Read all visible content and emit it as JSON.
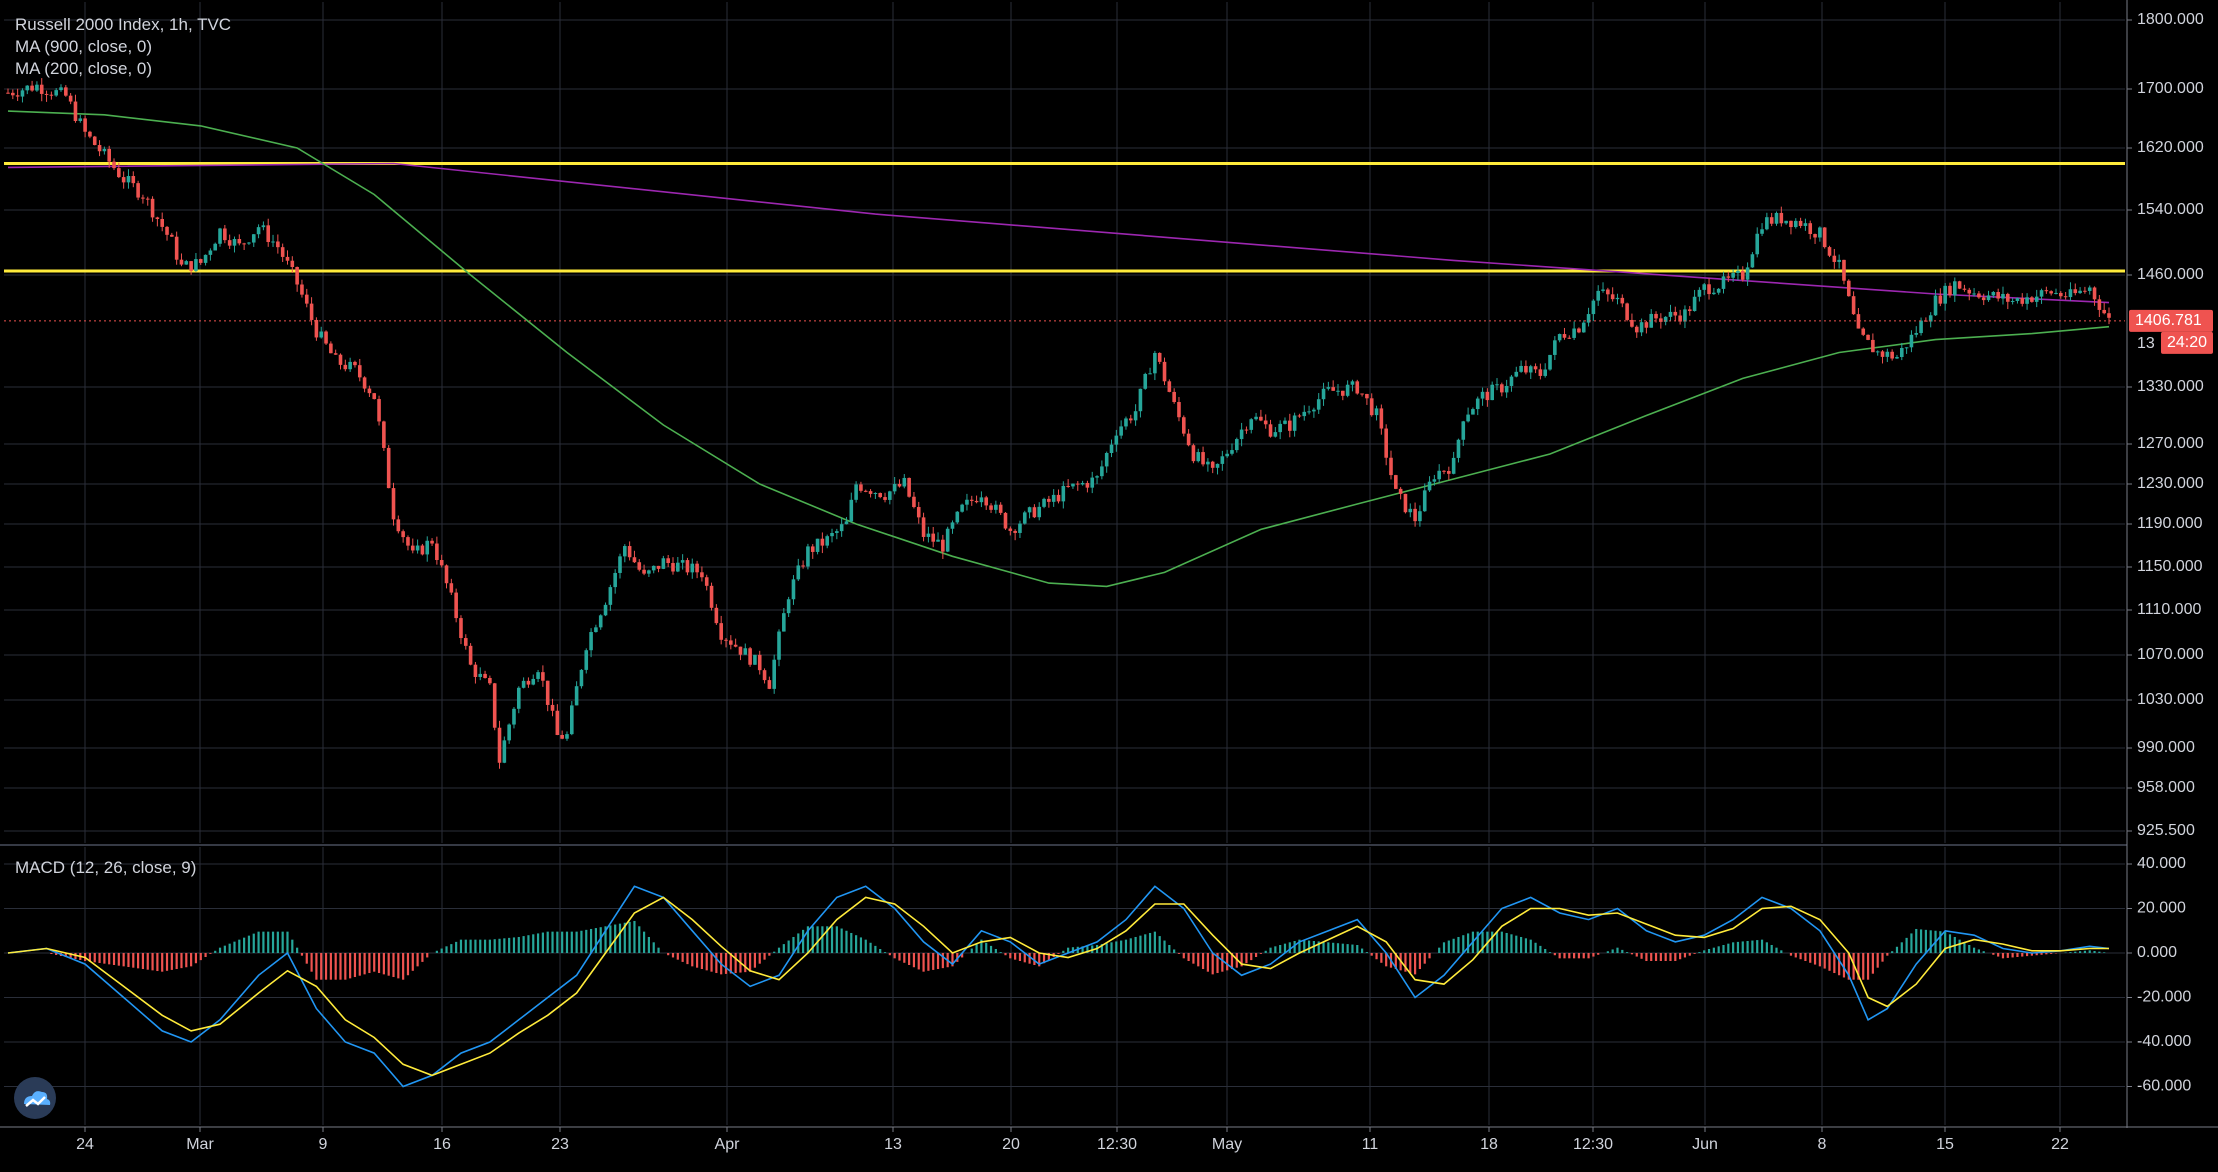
{
  "legend": {
    "title": "Russell 2000 Index, 1h, TVC",
    "ma900": "MA (900, close, 0)",
    "ma200": "MA (200, close, 0)",
    "macd": "MACD (12, 26, close, 9)"
  },
  "price_badge": "1406.781",
  "countdown_badge": "24:20",
  "hidden_label_fragment": "13",
  "logo": "tradingview-logo-icon",
  "colors": {
    "background": "#000000",
    "grid": "#2a2e39",
    "up": "#26a69a",
    "down": "#ef5350",
    "ma900": "#9c27b0",
    "ma200": "#4caf50",
    "resistance": "#ffeb3b",
    "macd_line": "#2196f3",
    "signal_line": "#ffeb3b",
    "hist_up": "#26a69a",
    "hist_down": "#ef5350",
    "axis_text": "#d1d4dc"
  },
  "chart_data": [
    {
      "type": "candlestick",
      "title": "Russell 2000 Index, 1h, TVC",
      "y_ticks": [
        "1800.000",
        "1700.000",
        "1620.000",
        "1540.000",
        "1460.000",
        "1330.000",
        "1270.000",
        "1230.000",
        "1190.000",
        "1150.000",
        "1110.000",
        "1070.000",
        "1030.000",
        "990.000",
        "958.000",
        "925.500"
      ],
      "x_ticks": [
        "24",
        "Mar",
        "9",
        "16",
        "23",
        "Apr",
        "13",
        "20",
        "12:30",
        "May",
        "11",
        "18",
        "12:30",
        "Jun",
        "8",
        "15",
        "22"
      ],
      "resistance_levels": [
        1600,
        1465
      ],
      "last_price": 1406.781,
      "close_path": [
        [
          0,
          1695
        ],
        [
          3,
          1705
        ],
        [
          6,
          1690
        ],
        [
          8,
          1640
        ],
        [
          10,
          1610
        ],
        [
          12,
          1580
        ],
        [
          14,
          1560
        ],
        [
          17,
          1500
        ],
        [
          18,
          1470
        ],
        [
          20,
          1475
        ],
        [
          22,
          1515
        ],
        [
          24,
          1495
        ],
        [
          26,
          1520
        ],
        [
          28,
          1495
        ],
        [
          30,
          1450
        ],
        [
          32,
          1395
        ],
        [
          34,
          1360
        ],
        [
          36,
          1350
        ],
        [
          38,
          1320
        ],
        [
          40,
          1200
        ],
        [
          42,
          1160
        ],
        [
          44,
          1175
        ],
        [
          46,
          1120
        ],
        [
          48,
          1060
        ],
        [
          50,
          1040
        ],
        [
          51,
          980
        ],
        [
          53,
          1040
        ],
        [
          55,
          1060
        ],
        [
          57,
          1000
        ],
        [
          58,
          1000
        ],
        [
          60,
          1080
        ],
        [
          62,
          1120
        ],
        [
          64,
          1170
        ],
        [
          66,
          1140
        ],
        [
          68,
          1155
        ],
        [
          70,
          1150
        ],
        [
          72,
          1145
        ],
        [
          74,
          1090
        ],
        [
          76,
          1075
        ],
        [
          78,
          1060
        ],
        [
          79,
          1045
        ],
        [
          81,
          1125
        ],
        [
          83,
          1165
        ],
        [
          85,
          1175
        ],
        [
          87,
          1190
        ],
        [
          88,
          1230
        ],
        [
          91,
          1220
        ],
        [
          93,
          1230
        ],
        [
          95,
          1180
        ],
        [
          97,
          1170
        ],
        [
          99,
          1205
        ],
        [
          101,
          1222
        ],
        [
          104,
          1185
        ],
        [
          106,
          1200
        ],
        [
          108,
          1212
        ],
        [
          110,
          1225
        ],
        [
          113,
          1235
        ],
        [
          115,
          1285
        ],
        [
          117,
          1305
        ],
        [
          119,
          1370
        ],
        [
          121,
          1310
        ],
        [
          123,
          1260
        ],
        [
          125,
          1240
        ],
        [
          127,
          1270
        ],
        [
          129,
          1300
        ],
        [
          131,
          1285
        ],
        [
          133,
          1290
        ],
        [
          135,
          1310
        ],
        [
          137,
          1325
        ],
        [
          140,
          1330
        ],
        [
          142,
          1300
        ],
        [
          144,
          1220
        ],
        [
          146,
          1195
        ],
        [
          148,
          1240
        ],
        [
          150,
          1250
        ],
        [
          151,
          1300
        ],
        [
          153,
          1320
        ],
        [
          155,
          1330
        ],
        [
          157,
          1350
        ],
        [
          159,
          1345
        ],
        [
          161,
          1390
        ],
        [
          163,
          1400
        ],
        [
          165,
          1440
        ],
        [
          167,
          1430
        ],
        [
          169,
          1400
        ],
        [
          171,
          1410
        ],
        [
          174,
          1415
        ],
        [
          176,
          1445
        ],
        [
          178,
          1450
        ],
        [
          180,
          1460
        ],
        [
          182,
          1525
        ],
        [
          184,
          1530
        ],
        [
          186,
          1525
        ],
        [
          188,
          1510
        ],
        [
          190,
          1470
        ],
        [
          192,
          1390
        ],
        [
          194,
          1370
        ],
        [
          196,
          1365
        ],
        [
          198,
          1395
        ],
        [
          200,
          1430
        ],
        [
          202,
          1450
        ],
        [
          204,
          1440
        ],
        [
          206,
          1435
        ],
        [
          208,
          1430
        ],
        [
          210,
          1435
        ],
        [
          212,
          1440
        ],
        [
          214,
          1435
        ],
        [
          216,
          1445
        ],
        [
          218,
          1407
        ]
      ],
      "ma900_path": [
        [
          0,
          1595
        ],
        [
          40,
          1600
        ],
        [
          90,
          1535
        ],
        [
          150,
          1478
        ],
        [
          200,
          1438
        ],
        [
          218,
          1428
        ]
      ],
      "ma200_path": [
        [
          0,
          1670
        ],
        [
          10,
          1665
        ],
        [
          20,
          1650
        ],
        [
          30,
          1620
        ],
        [
          38,
          1560
        ],
        [
          48,
          1460
        ],
        [
          58,
          1370
        ],
        [
          68,
          1290
        ],
        [
          78,
          1230
        ],
        [
          88,
          1190
        ],
        [
          98,
          1160
        ],
        [
          108,
          1135
        ],
        [
          114,
          1132
        ],
        [
          120,
          1145
        ],
        [
          130,
          1185
        ],
        [
          140,
          1210
        ],
        [
          150,
          1235
        ],
        [
          160,
          1260
        ],
        [
          170,
          1300
        ],
        [
          180,
          1340
        ],
        [
          190,
          1370
        ],
        [
          200,
          1385
        ],
        [
          210,
          1392
        ],
        [
          218,
          1400
        ]
      ]
    },
    {
      "type": "macd",
      "title": "MACD (12, 26, close, 9)",
      "y_ticks": [
        "40.000",
        "20.000",
        "0.000",
        "-20.000",
        "-40.000",
        "-60.000"
      ],
      "ylim": [
        -80,
        40
      ],
      "macd_path": [
        [
          0,
          0
        ],
        [
          4,
          2
        ],
        [
          8,
          -5
        ],
        [
          12,
          -20
        ],
        [
          16,
          -35
        ],
        [
          19,
          -40
        ],
        [
          22,
          -30
        ],
        [
          26,
          -10
        ],
        [
          29,
          0
        ],
        [
          32,
          -25
        ],
        [
          35,
          -40
        ],
        [
          38,
          -45
        ],
        [
          41,
          -60
        ],
        [
          44,
          -55
        ],
        [
          47,
          -45
        ],
        [
          50,
          -40
        ],
        [
          53,
          -30
        ],
        [
          56,
          -20
        ],
        [
          59,
          -10
        ],
        [
          62,
          10
        ],
        [
          65,
          30
        ],
        [
          68,
          25
        ],
        [
          71,
          10
        ],
        [
          74,
          -5
        ],
        [
          77,
          -15
        ],
        [
          80,
          -10
        ],
        [
          83,
          10
        ],
        [
          86,
          25
        ],
        [
          89,
          30
        ],
        [
          92,
          20
        ],
        [
          95,
          5
        ],
        [
          98,
          -5
        ],
        [
          101,
          10
        ],
        [
          104,
          5
        ],
        [
          107,
          -5
        ],
        [
          110,
          0
        ],
        [
          113,
          5
        ],
        [
          116,
          15
        ],
        [
          119,
          30
        ],
        [
          122,
          20
        ],
        [
          125,
          0
        ],
        [
          128,
          -10
        ],
        [
          131,
          -5
        ],
        [
          134,
          5
        ],
        [
          137,
          10
        ],
        [
          140,
          15
        ],
        [
          143,
          0
        ],
        [
          146,
          -20
        ],
        [
          149,
          -10
        ],
        [
          152,
          5
        ],
        [
          155,
          20
        ],
        [
          158,
          25
        ],
        [
          161,
          18
        ],
        [
          164,
          15
        ],
        [
          167,
          20
        ],
        [
          170,
          10
        ],
        [
          173,
          5
        ],
        [
          176,
          8
        ],
        [
          179,
          15
        ],
        [
          182,
          25
        ],
        [
          185,
          20
        ],
        [
          188,
          10
        ],
        [
          191,
          -10
        ],
        [
          193,
          -30
        ],
        [
          195,
          -25
        ],
        [
          198,
          -5
        ],
        [
          201,
          10
        ],
        [
          204,
          8
        ],
        [
          207,
          2
        ],
        [
          210,
          0
        ],
        [
          213,
          1
        ],
        [
          216,
          3
        ],
        [
          218,
          2
        ]
      ],
      "signal_path": [
        [
          0,
          0
        ],
        [
          4,
          2
        ],
        [
          8,
          -2
        ],
        [
          12,
          -15
        ],
        [
          16,
          -28
        ],
        [
          19,
          -35
        ],
        [
          22,
          -32
        ],
        [
          26,
          -18
        ],
        [
          29,
          -8
        ],
        [
          32,
          -15
        ],
        [
          35,
          -30
        ],
        [
          38,
          -38
        ],
        [
          41,
          -50
        ],
        [
          44,
          -55
        ],
        [
          47,
          -50
        ],
        [
          50,
          -45
        ],
        [
          53,
          -36
        ],
        [
          56,
          -28
        ],
        [
          59,
          -18
        ],
        [
          62,
          0
        ],
        [
          65,
          18
        ],
        [
          68,
          25
        ],
        [
          71,
          15
        ],
        [
          74,
          3
        ],
        [
          77,
          -8
        ],
        [
          80,
          -12
        ],
        [
          83,
          0
        ],
        [
          86,
          15
        ],
        [
          89,
          25
        ],
        [
          92,
          22
        ],
        [
          95,
          12
        ],
        [
          98,
          0
        ],
        [
          101,
          5
        ],
        [
          104,
          7
        ],
        [
          107,
          0
        ],
        [
          110,
          -2
        ],
        [
          113,
          2
        ],
        [
          116,
          10
        ],
        [
          119,
          22
        ],
        [
          122,
          22
        ],
        [
          125,
          8
        ],
        [
          128,
          -5
        ],
        [
          131,
          -7
        ],
        [
          134,
          0
        ],
        [
          137,
          6
        ],
        [
          140,
          12
        ],
        [
          143,
          5
        ],
        [
          146,
          -12
        ],
        [
          149,
          -14
        ],
        [
          152,
          -3
        ],
        [
          155,
          12
        ],
        [
          158,
          20
        ],
        [
          161,
          20
        ],
        [
          164,
          17
        ],
        [
          167,
          18
        ],
        [
          170,
          13
        ],
        [
          173,
          8
        ],
        [
          176,
          7
        ],
        [
          179,
          11
        ],
        [
          182,
          20
        ],
        [
          185,
          21
        ],
        [
          188,
          15
        ],
        [
          191,
          0
        ],
        [
          193,
          -20
        ],
        [
          195,
          -24
        ],
        [
          198,
          -14
        ],
        [
          201,
          2
        ],
        [
          204,
          6
        ],
        [
          207,
          4
        ],
        [
          210,
          1
        ],
        [
          213,
          1
        ],
        [
          216,
          2
        ],
        [
          218,
          2
        ]
      ]
    }
  ]
}
